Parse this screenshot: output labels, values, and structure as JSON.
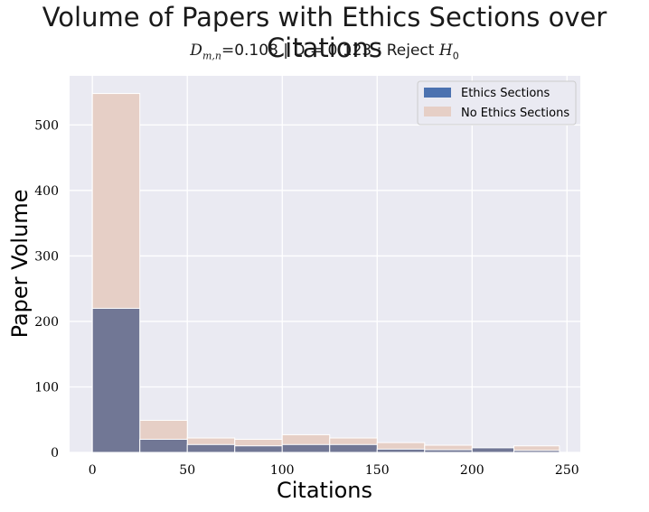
{
  "chart_data": {
    "type": "bar",
    "title": "Volume of Papers with Ethics Sections over Citations",
    "subtitle": {
      "stat_var": "D",
      "stat_sub": "m,n",
      "stat_value": "=0.108 | D = 0.123 : Reject ",
      "hyp_var": "H",
      "hyp_sub": "0"
    },
    "xlabel": "Citations",
    "ylabel": "Paper Volume",
    "xlim": [
      -12,
      257
    ],
    "ylim": [
      0,
      575
    ],
    "x_ticks": [
      0,
      50,
      100,
      150,
      200,
      250
    ],
    "y_ticks": [
      0,
      100,
      200,
      300,
      400,
      500
    ],
    "grid": true,
    "legend_position": "top-right",
    "bins": [
      [
        0,
        25
      ],
      [
        25,
        50
      ],
      [
        50,
        75
      ],
      [
        75,
        100
      ],
      [
        100,
        125
      ],
      [
        125,
        150
      ],
      [
        150,
        175
      ],
      [
        175,
        200
      ],
      [
        200,
        222
      ],
      [
        222,
        246
      ]
    ],
    "series": [
      {
        "name": "No Ethics Sections",
        "color": "#e6cfc6",
        "values": [
          548,
          49,
          22,
          20,
          27,
          22,
          15,
          11,
          7,
          10
        ]
      },
      {
        "name": "Ethics Sections",
        "color": "#717795",
        "legend_color": "#4c72b0",
        "values": [
          220,
          20,
          12,
          10,
          12,
          12,
          5,
          4,
          7,
          3
        ]
      }
    ]
  }
}
